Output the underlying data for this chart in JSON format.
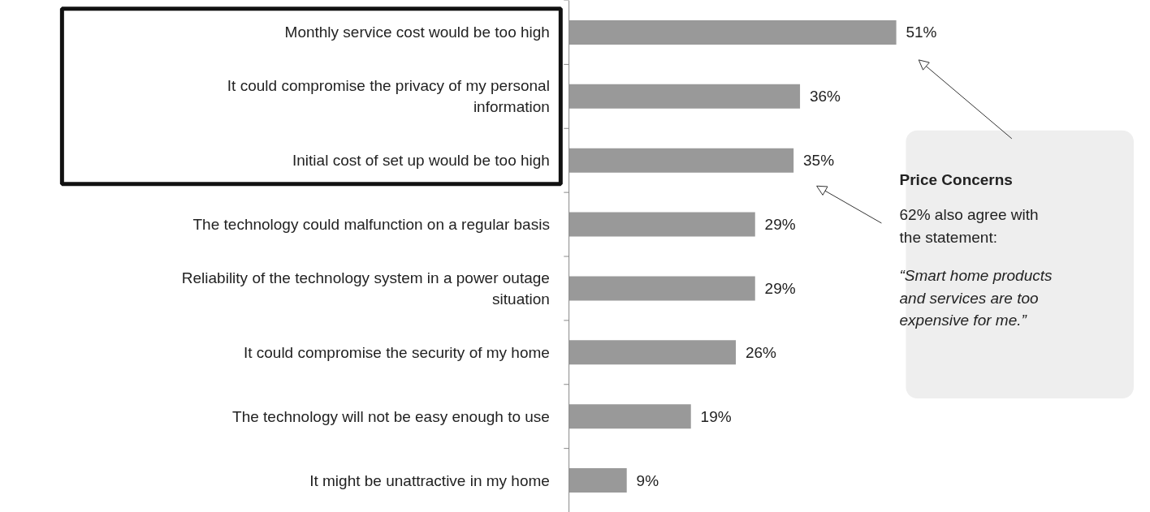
{
  "chart_data": {
    "type": "bar",
    "orientation": "horizontal",
    "categories": [
      "Monthly service cost would be too high",
      "It could compromise the privacy of my personal information",
      "Initial cost of set up would be too high",
      "The technology could malfunction on a regular basis",
      "Reliability of the technology system in a power outage situation",
      "It could compromise the security of my home",
      "The technology will not be easy enough to use",
      "It might be unattractive in my home"
    ],
    "values": [
      51,
      36,
      35,
      29,
      29,
      26,
      19,
      9
    ],
    "value_labels": [
      "51%",
      "36%",
      "35%",
      "29%",
      "29%",
      "26%",
      "19%",
      "9%"
    ],
    "color": "#999999",
    "annotations": [
      "Price Concerns",
      "62% also agree with the statement:",
      "“Smart home products and services are too expensive for me.”"
    ],
    "grid": false
  }
}
